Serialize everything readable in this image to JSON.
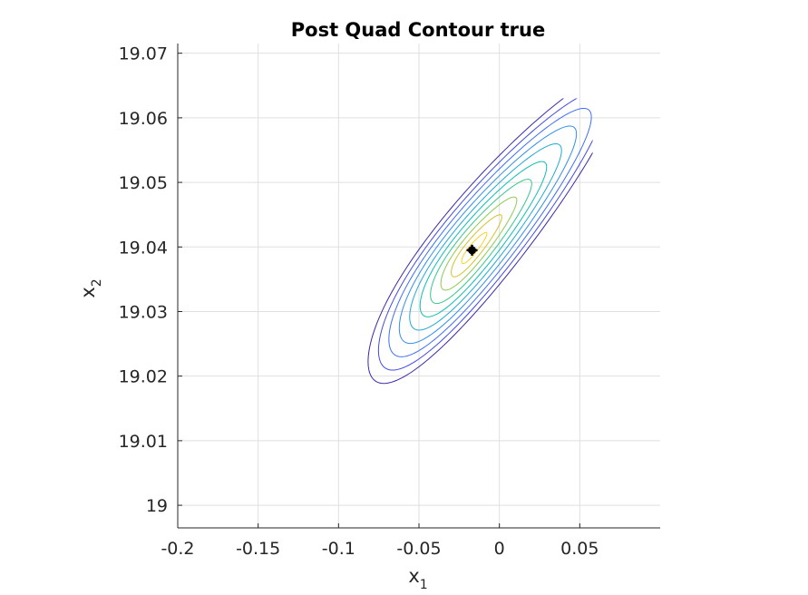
{
  "chart_data": {
    "type": "contour",
    "title": "Post Quad Contour true",
    "xlabel_main": "x",
    "xlabel_sub": "1",
    "ylabel_main": "x",
    "ylabel_sub": "2",
    "xlim": [
      -0.2,
      0.1
    ],
    "ylim": [
      18.9965,
      19.0715
    ],
    "xticks": [
      -0.2,
      -0.15,
      -0.1,
      -0.05,
      0,
      0.05
    ],
    "xtick_labels": [
      "-0.2",
      "-0.15",
      "-0.1",
      "-0.05",
      "0",
      "0.05"
    ],
    "yticks": [
      19.0,
      19.01,
      19.02,
      19.03,
      19.04,
      19.05,
      19.06,
      19.07
    ],
    "ytick_labels": [
      "19",
      "19.01",
      "19.02",
      "19.03",
      "19.04",
      "19.05",
      "19.06",
      "19.07"
    ],
    "grid": true,
    "optimum": {
      "x": -0.017,
      "y": 19.0395,
      "color": "#000000"
    },
    "contour_levels": 10,
    "colormap": [
      "#3e26a8",
      "#4149e6",
      "#3f6dfc",
      "#2f8fef",
      "#1fa9d6",
      "#0cbeb4",
      "#35c88d",
      "#8dcb4f",
      "#d5c12e",
      "#f9d31f"
    ],
    "contour_center": {
      "x": -0.017,
      "y": 19.0395
    },
    "contour_major_dir": [
      0.0785,
      0.0222
    ],
    "contour_minor_dir": [
      -0.0051,
      0.0088
    ]
  }
}
